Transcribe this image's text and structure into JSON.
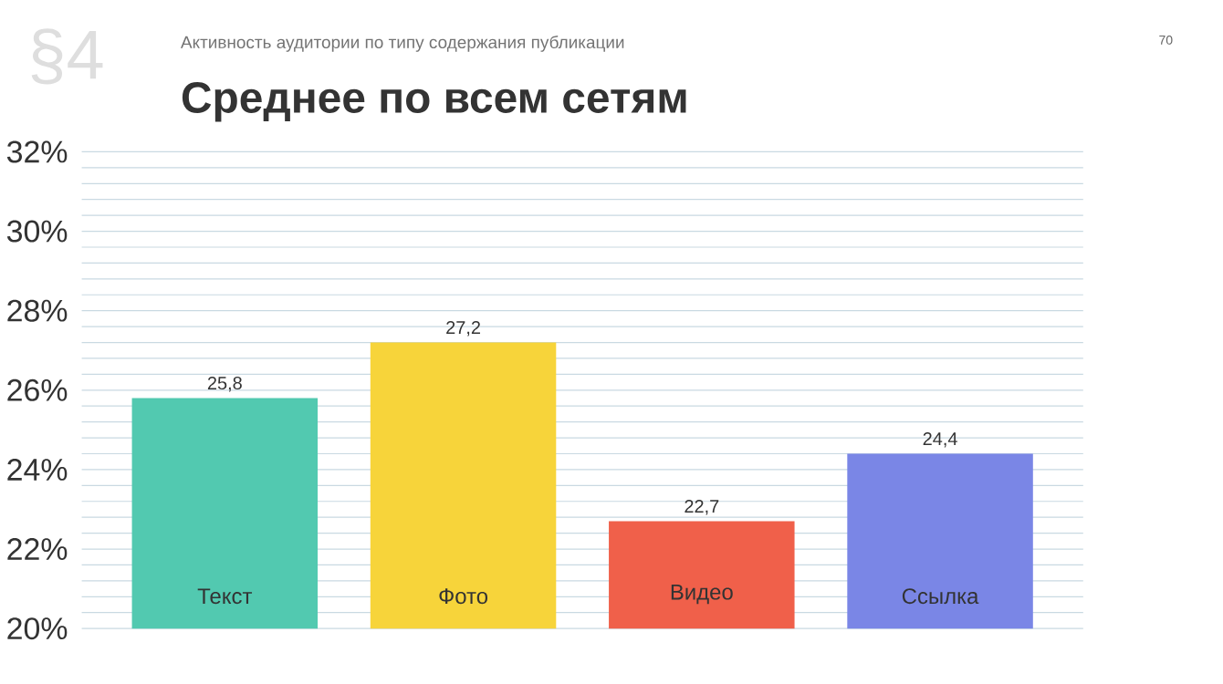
{
  "chart_data": {
    "type": "bar",
    "title": "Среднее по всем сетям",
    "subtitle": "Активность аудитории по типу содержания публикации",
    "annotations": [
      "§4",
      "70"
    ],
    "categories": [
      "Текст",
      "Фото",
      "Видео",
      "Ссылка"
    ],
    "values": [
      25.8,
      27.2,
      22.7,
      24.4
    ],
    "value_labels": [
      "25,8",
      "27,2",
      "22,7",
      "24,4"
    ],
    "colors": [
      "#52c9b0",
      "#f7d43a",
      "#f0604a",
      "#7a86e6"
    ],
    "ylim": [
      20,
      32
    ],
    "yticks": [
      {
        "value": 20,
        "label": "20%"
      },
      {
        "value": 20.4,
        "label": null
      },
      {
        "value": 20.8,
        "label": null
      },
      {
        "value": 21.2,
        "label": null
      },
      {
        "value": 21.6,
        "label": null
      },
      {
        "value": 22,
        "label": "22%"
      },
      {
        "value": 22.4,
        "label": null
      },
      {
        "value": 22.8,
        "label": null
      },
      {
        "value": 23.2,
        "label": null
      },
      {
        "value": 23.6,
        "label": null
      },
      {
        "value": 24,
        "label": "24%"
      },
      {
        "value": 24.4,
        "label": null
      },
      {
        "value": 24.8,
        "label": null
      },
      {
        "value": 25.2,
        "label": null
      },
      {
        "value": 25.6,
        "label": null
      },
      {
        "value": 26,
        "label": "26%"
      },
      {
        "value": 26.4,
        "label": null
      },
      {
        "value": 26.8,
        "label": null
      },
      {
        "value": 27.2,
        "label": null
      },
      {
        "value": 27.6,
        "label": null
      },
      {
        "value": 28,
        "label": "28%"
      },
      {
        "value": 28.4,
        "label": null
      },
      {
        "value": 28.8,
        "label": null
      },
      {
        "value": 29.2,
        "label": null
      },
      {
        "value": 29.6,
        "label": null
      },
      {
        "value": 30,
        "label": "30%"
      },
      {
        "value": 30.4,
        "label": null
      },
      {
        "value": 30.8,
        "label": null
      },
      {
        "value": 31.2,
        "label": null
      },
      {
        "value": 31.6,
        "label": null
      },
      {
        "value": 32,
        "label": "32%"
      }
    ],
    "grid": "y"
  }
}
